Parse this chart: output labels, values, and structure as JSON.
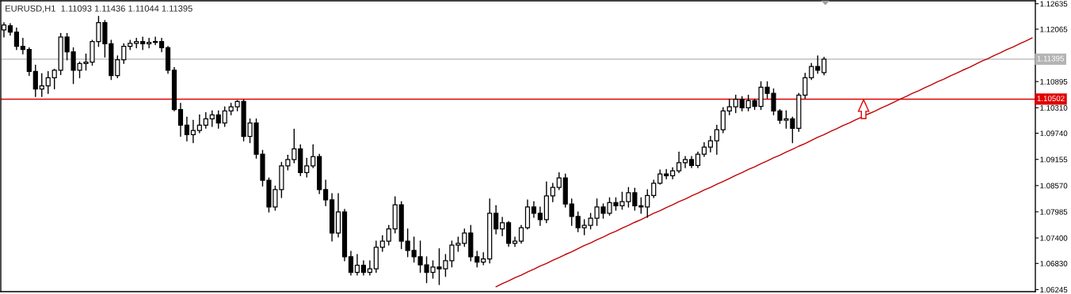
{
  "chart_data": {
    "type": "candlestick",
    "title": "EURUSD,H1  1.11093 1.11436 1.11044 1.11395",
    "categories": [
      null,
      null,
      null,
      null,
      null,
      null,
      null,
      null,
      null,
      null,
      null,
      null,
      null,
      null,
      null,
      null,
      null,
      null,
      null,
      null,
      null,
      null,
      null,
      null,
      null,
      null,
      null,
      null,
      null,
      null,
      null,
      null,
      null,
      null,
      null,
      null,
      null,
      null,
      null,
      null,
      null,
      null,
      null,
      null,
      null,
      null,
      null,
      null,
      null,
      null,
      null,
      null,
      null,
      null,
      null,
      null,
      null,
      null,
      null,
      null,
      null,
      null,
      null,
      null,
      null,
      null,
      null,
      null,
      null,
      null,
      null,
      null,
      null,
      null,
      null,
      null,
      null,
      null,
      null,
      null,
      null,
      null,
      null,
      null,
      null,
      null,
      null,
      null,
      null,
      null,
      null,
      null,
      null,
      null,
      null,
      null,
      null,
      null,
      null,
      null,
      null,
      null,
      null,
      null,
      null,
      null,
      null,
      null,
      null,
      null,
      null,
      null,
      null,
      null,
      null,
      null,
      null,
      null,
      null,
      null,
      null,
      null,
      null,
      null,
      null,
      null,
      null,
      null,
      null,
      null,
      null,
      null,
      null,
      null,
      null,
      null,
      null,
      null,
      null,
      null,
      null,
      null,
      null,
      null,
      null,
      null,
      null,
      null,
      null,
      null,
      null,
      null,
      null,
      null,
      null,
      null,
      null,
      null,
      null,
      null,
      null,
      null,
      null,
      null
    ],
    "ohlc": [
      [
        1.1205,
        1.1221,
        1.1189,
        1.1216
      ],
      [
        1.1214,
        1.1219,
        1.1193,
        1.12
      ],
      [
        1.12,
        1.1209,
        1.1161,
        1.1168
      ],
      [
        1.1168,
        1.1186,
        1.1151,
        1.1161
      ],
      [
        1.1161,
        1.1165,
        1.1103,
        1.1112
      ],
      [
        1.1112,
        1.1126,
        1.1056,
        1.1073
      ],
      [
        1.1073,
        1.1107,
        1.1056,
        1.108
      ],
      [
        1.108,
        1.1112,
        1.1063,
        1.1098
      ],
      [
        1.1098,
        1.1117,
        1.1073,
        1.1115
      ],
      [
        1.1115,
        1.1197,
        1.1105,
        1.1189
      ],
      [
        1.1189,
        1.1197,
        1.1138,
        1.1156
      ],
      [
        1.1156,
        1.1165,
        1.1085,
        1.1115
      ],
      [
        1.1115,
        1.1133,
        1.1098,
        1.113
      ],
      [
        1.113,
        1.1151,
        1.1115,
        1.1133
      ],
      [
        1.1133,
        1.1182,
        1.1126,
        1.1179
      ],
      [
        1.1179,
        1.1235,
        1.1168,
        1.1221
      ],
      [
        1.1221,
        1.1226,
        1.1144,
        1.1174
      ],
      [
        1.1174,
        1.1182,
        1.1094,
        1.1103
      ],
      [
        1.1103,
        1.1147,
        1.1098,
        1.1138
      ],
      [
        1.1138,
        1.1174,
        1.113,
        1.1168
      ],
      [
        1.1168,
        1.1182,
        1.1161,
        1.1175
      ],
      [
        1.1175,
        1.1186,
        1.1165,
        1.1179
      ],
      [
        1.1179,
        1.1189,
        1.1161,
        1.1174
      ],
      [
        1.1174,
        1.1186,
        1.1165,
        1.1177
      ],
      [
        1.1177,
        1.1189,
        1.1172,
        1.1179
      ],
      [
        1.1179,
        1.1186,
        1.1156,
        1.1165
      ],
      [
        1.1165,
        1.1168,
        1.1108,
        1.1115
      ],
      [
        1.1115,
        1.1121,
        1.1024,
        1.1027
      ],
      [
        1.1027,
        1.1041,
        1.0967,
        1.0992
      ],
      [
        1.0992,
        1.101,
        1.0957,
        1.0971
      ],
      [
        1.0971,
        1.1003,
        1.0953,
        1.098
      ],
      [
        1.098,
        1.1015,
        1.0975,
        1.0992
      ],
      [
        1.0992,
        1.102,
        1.0985,
        1.1006
      ],
      [
        1.1006,
        1.1024,
        1.0989,
        1.1015
      ],
      [
        1.1015,
        1.1024,
        1.0985,
        1.0997
      ],
      [
        1.0997,
        1.1033,
        1.0989,
        1.1024
      ],
      [
        1.1024,
        1.1041,
        1.1015,
        1.1033
      ],
      [
        1.1033,
        1.1047,
        1.1024,
        1.1045
      ],
      [
        1.1045,
        1.1049,
        1.0957,
        1.0967
      ],
      [
        1.0967,
        1.1006,
        1.0953,
        1.0997
      ],
      [
        1.0997,
        1.1006,
        1.0918,
        1.0927
      ],
      [
        1.0927,
        1.0936,
        1.0856,
        1.0869
      ],
      [
        1.0869,
        1.0874,
        1.0798,
        1.0809
      ],
      [
        1.0809,
        1.0856,
        1.0802,
        1.0848
      ],
      [
        1.0848,
        1.0909,
        1.083,
        1.0901
      ],
      [
        1.0901,
        1.0925,
        1.0892,
        1.0915
      ],
      [
        1.0915,
        1.0983,
        1.0908,
        1.0939
      ],
      [
        1.0939,
        1.0948,
        1.0879,
        1.0886
      ],
      [
        1.0886,
        1.0918,
        1.0876,
        1.0901
      ],
      [
        1.0901,
        1.0948,
        1.0897,
        1.0922
      ],
      [
        1.0922,
        1.0927,
        1.0839,
        1.0848
      ],
      [
        1.0848,
        1.0869,
        1.0812,
        1.0825
      ],
      [
        1.0825,
        1.0839,
        1.0733,
        1.0751
      ],
      [
        1.0751,
        1.0839,
        1.0742,
        1.0798
      ],
      [
        1.0798,
        1.0804,
        1.0689,
        1.0698
      ],
      [
        1.0698,
        1.071,
        1.0657,
        1.0663
      ],
      [
        1.0663,
        1.0703,
        1.0657,
        1.0679
      ],
      [
        1.0679,
        1.0689,
        1.0657,
        1.0663
      ],
      [
        1.0663,
        1.0689,
        1.0657,
        1.0671
      ],
      [
        1.0671,
        1.0733,
        1.0663,
        1.0719
      ],
      [
        1.0719,
        1.0745,
        1.071,
        1.0733
      ],
      [
        1.0733,
        1.0768,
        1.0724,
        1.076
      ],
      [
        1.076,
        1.0832,
        1.0751,
        1.0814
      ],
      [
        1.0814,
        1.0821,
        1.0716,
        1.0733
      ],
      [
        1.0733,
        1.076,
        1.0698,
        1.0712
      ],
      [
        1.0712,
        1.0742,
        1.0686,
        1.0698
      ],
      [
        1.0698,
        1.0733,
        1.0663,
        1.068
      ],
      [
        1.068,
        1.0698,
        1.064,
        1.0663
      ],
      [
        1.0663,
        1.0689,
        1.065,
        1.0675
      ],
      [
        1.0675,
        1.0716,
        1.0636,
        1.0671
      ],
      [
        1.0671,
        1.0703,
        1.0654,
        1.0689
      ],
      [
        1.0689,
        1.0733,
        1.0675,
        1.0724
      ],
      [
        1.0724,
        1.0742,
        1.071,
        1.0728
      ],
      [
        1.0728,
        1.076,
        1.0721,
        1.0751
      ],
      [
        1.0751,
        1.0768,
        1.0689,
        1.0698
      ],
      [
        1.0698,
        1.071,
        1.0675,
        1.0686
      ],
      [
        1.0686,
        1.0707,
        1.068,
        1.0693
      ],
      [
        1.0693,
        1.0827,
        1.0684,
        1.0795
      ],
      [
        1.0795,
        1.0812,
        1.0749,
        1.076
      ],
      [
        1.076,
        1.0786,
        1.0745,
        1.0774
      ],
      [
        1.0774,
        1.0777,
        1.0721,
        1.0728
      ],
      [
        1.0728,
        1.0742,
        1.0721,
        1.0733
      ],
      [
        1.0733,
        1.0768,
        1.0728,
        1.0763
      ],
      [
        1.0763,
        1.0825,
        1.076,
        1.0809
      ],
      [
        1.0809,
        1.0821,
        1.0786,
        1.0795
      ],
      [
        1.0795,
        1.0809,
        1.0768,
        1.0781
      ],
      [
        1.0781,
        1.0865,
        1.0774,
        1.0834
      ],
      [
        1.0834,
        1.0862,
        1.0821,
        1.0853
      ],
      [
        1.0853,
        1.0886,
        1.0848,
        1.0874
      ],
      [
        1.0874,
        1.0883,
        1.0809,
        1.0816
      ],
      [
        1.0816,
        1.0827,
        1.0768,
        1.0788
      ],
      [
        1.0788,
        1.0798,
        1.0754,
        1.0763
      ],
      [
        1.0763,
        1.0781,
        1.0747,
        1.0768
      ],
      [
        1.0768,
        1.0795,
        1.076,
        1.0784
      ],
      [
        1.0784,
        1.0827,
        1.0768,
        1.0809
      ],
      [
        1.0809,
        1.0816,
        1.0784,
        1.0795
      ],
      [
        1.0795,
        1.083,
        1.0791,
        1.0819
      ],
      [
        1.0819,
        1.083,
        1.0802,
        1.0812
      ],
      [
        1.0812,
        1.0842,
        1.0804,
        1.0821
      ],
      [
        1.0821,
        1.0853,
        1.0809,
        1.0841
      ],
      [
        1.0841,
        1.0851,
        1.0802,
        1.0812
      ],
      [
        1.0812,
        1.083,
        1.0795,
        1.0809
      ],
      [
        1.0809,
        1.0848,
        1.0786,
        1.0835
      ],
      [
        1.0835,
        1.0869,
        1.083,
        1.0862
      ],
      [
        1.0862,
        1.0892,
        1.086,
        1.0883
      ],
      [
        1.0883,
        1.0893,
        1.0872,
        1.0879
      ],
      [
        1.0879,
        1.0897,
        1.0872,
        1.089
      ],
      [
        1.089,
        1.0932,
        1.0886,
        1.0908
      ],
      [
        1.0908,
        1.0922,
        1.0897,
        1.0915
      ],
      [
        1.0915,
        1.0922,
        1.0897,
        1.0902
      ],
      [
        1.0902,
        1.0932,
        1.0897,
        1.0927
      ],
      [
        1.0927,
        1.0953,
        1.0922,
        1.0943
      ],
      [
        1.0943,
        1.0967,
        1.0932,
        1.0957
      ],
      [
        1.0957,
        1.0992,
        1.0927,
        1.0982
      ],
      [
        1.0982,
        1.1031,
        1.0975,
        1.1024
      ],
      [
        1.1024,
        1.105,
        1.1015,
        1.1033
      ],
      [
        1.1033,
        1.1059,
        1.102,
        1.105
      ],
      [
        1.105,
        1.1056,
        1.1024,
        1.1031
      ],
      [
        1.1031,
        1.1059,
        1.1024,
        1.1047
      ],
      [
        1.1047,
        1.105,
        1.1027,
        1.1034
      ],
      [
        1.1034,
        1.1089,
        1.1027,
        1.1077
      ],
      [
        1.1077,
        1.1089,
        1.1052,
        1.1063
      ],
      [
        1.1063,
        1.1073,
        1.1015,
        1.1024
      ],
      [
        1.1024,
        1.1027,
        1.0996,
        1.1003
      ],
      [
        1.1003,
        1.1024,
        1.0985,
        1.1006
      ],
      [
        1.1006,
        1.101,
        1.0953,
        1.0985
      ],
      [
        1.0985,
        1.1063,
        1.0978,
        1.1059
      ],
      [
        1.1059,
        1.1108,
        1.1052,
        1.1098
      ],
      [
        1.1098,
        1.113,
        1.1094,
        1.1123
      ],
      [
        1.1123,
        1.1147,
        1.1108,
        1.1115
      ],
      [
        1.11093,
        1.11436,
        1.11044,
        1.11395
      ],
      null,
      null,
      null,
      null,
      null,
      null,
      null,
      null,
      null,
      null,
      null,
      null,
      null,
      null,
      null,
      null,
      null,
      null,
      null,
      null,
      null,
      null,
      null,
      null,
      null,
      null,
      null,
      null,
      null,
      null,
      null,
      null,
      null
    ],
    "series": [
      {
        "type": "line",
        "color": "#c00000",
        "values": [
          null,
          null,
          null,
          null,
          null,
          null,
          null,
          null,
          null,
          null,
          null,
          null,
          null,
          null,
          null,
          null,
          null,
          null,
          null,
          null,
          null,
          null,
          null,
          null,
          null,
          null,
          null,
          null,
          null,
          null,
          null,
          null,
          null,
          null,
          null,
          null,
          null,
          null,
          null,
          null,
          null,
          null,
          null,
          null,
          null,
          null,
          null,
          null,
          null,
          null,
          null,
          null,
          null,
          null,
          null,
          null,
          null,
          null,
          null,
          null,
          null,
          null,
          null,
          null,
          null,
          null,
          null,
          null,
          null,
          null,
          null,
          null,
          null,
          null,
          null,
          null,
          null,
          null,
          1.0631,
          1.0638,
          1.0644,
          1.0651,
          1.0657,
          1.0664,
          1.067,
          1.0677,
          1.0683,
          1.069,
          1.0696,
          1.0703,
          1.0709,
          1.0716,
          1.0723,
          1.0729,
          1.0736,
          1.0742,
          1.0749,
          1.0755,
          1.0762,
          1.0768,
          1.0775,
          1.0781,
          1.0788,
          1.0795,
          1.0801,
          1.0808,
          1.0814,
          1.0821,
          1.0827,
          1.0834,
          1.084,
          1.0847,
          1.0853,
          1.086,
          1.0866,
          1.0873,
          1.088,
          1.0886,
          1.0893,
          1.0899,
          1.0906,
          1.0912,
          1.0919,
          1.0925,
          1.0932,
          1.0938,
          1.0945,
          1.0951,
          1.0958,
          1.0965,
          1.0971,
          1.0978,
          1.0984,
          1.0991,
          1.0997,
          1.1004,
          1.101,
          1.1017,
          1.1023,
          1.103,
          1.1036,
          1.1043,
          1.105,
          1.1056,
          1.1063,
          1.1069,
          1.1076,
          1.1082,
          1.1089,
          1.1095,
          1.1102,
          1.1108,
          1.1115,
          1.1121,
          1.1128,
          1.1135,
          1.1141,
          1.1148,
          1.1154,
          1.1161,
          1.1167,
          1.1174,
          1.118,
          1.1187
        ]
      }
    ],
    "ylim": [
      1.062,
      1.127
    ],
    "yticks": [
      1.12635,
      1.12065,
      {
        "value": 1.1148,
        "label": null
      },
      1.10895,
      {
        "value": 1.1031,
        "label": "1.10310"
      },
      {
        "value": 1.0974,
        "label": "1.09740"
      },
      1.09155,
      {
        "value": 1.0857,
        "label": "1.08570"
      },
      1.07985,
      {
        "value": 1.074,
        "label": "1.07400"
      },
      {
        "value": 1.0683,
        "label": "1.06830"
      },
      1.06245
    ],
    "ref_lines": [
      {
        "axis": "y",
        "value": 1.11395,
        "label": "1.11395",
        "color": "#b4b4b4"
      },
      {
        "axis": "y",
        "value": 1.10502,
        "label": "1.10502",
        "color": "#e00000"
      }
    ],
    "grid": false,
    "legend": false,
    "marker": "none"
  }
}
